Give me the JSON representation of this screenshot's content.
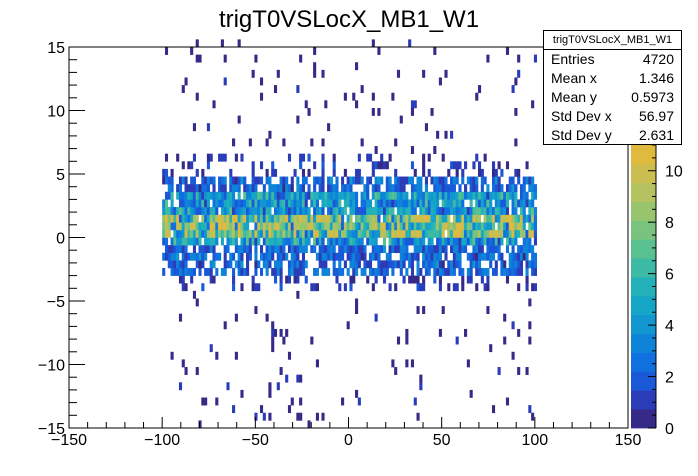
{
  "chart_data": {
    "type": "heatmap",
    "title": "trigT0VSLocX_MB1_W1",
    "xlabel": "",
    "ylabel": "",
    "xlim": [
      -150,
      150
    ],
    "ylim": [
      -15,
      15
    ],
    "x_ticks": [
      "−150",
      "−100",
      "−50",
      "0",
      "50",
      "100",
      "150"
    ],
    "y_ticks": [
      "15",
      "10",
      "5",
      "0",
      "−5",
      "−10",
      "−15"
    ],
    "z_range": [
      0,
      11
    ],
    "z_ticks": [
      "0",
      "2",
      "4",
      "6",
      "8",
      "10"
    ],
    "palette": [
      "#352a87",
      "#2b3cb8",
      "#1959d8",
      "#1070e0",
      "#0d84d8",
      "#1296d0",
      "#14a5c7",
      "#22b1b8",
      "#3cbaa4",
      "#59c08f",
      "#79c37e",
      "#98c46e",
      "#b4c260",
      "#ccbd50",
      "#e0b93f"
    ],
    "occupancy": {
      "x_range": [
        -100,
        100
      ],
      "y_range": [
        -3,
        5
      ],
      "peak_y_range": [
        0,
        2
      ],
      "max_count": 11
    },
    "stats": {
      "header": "trigT0VSLocX_MB1_W1",
      "rows": [
        {
          "label": "Entries",
          "value": "4720"
        },
        {
          "label": "Mean x",
          "value": "1.346"
        },
        {
          "label": "Mean y",
          "value": "0.5973"
        },
        {
          "label": "Std Dev x",
          "value": "56.97"
        },
        {
          "label": "Std Dev y",
          "value": "2.631"
        }
      ]
    }
  }
}
